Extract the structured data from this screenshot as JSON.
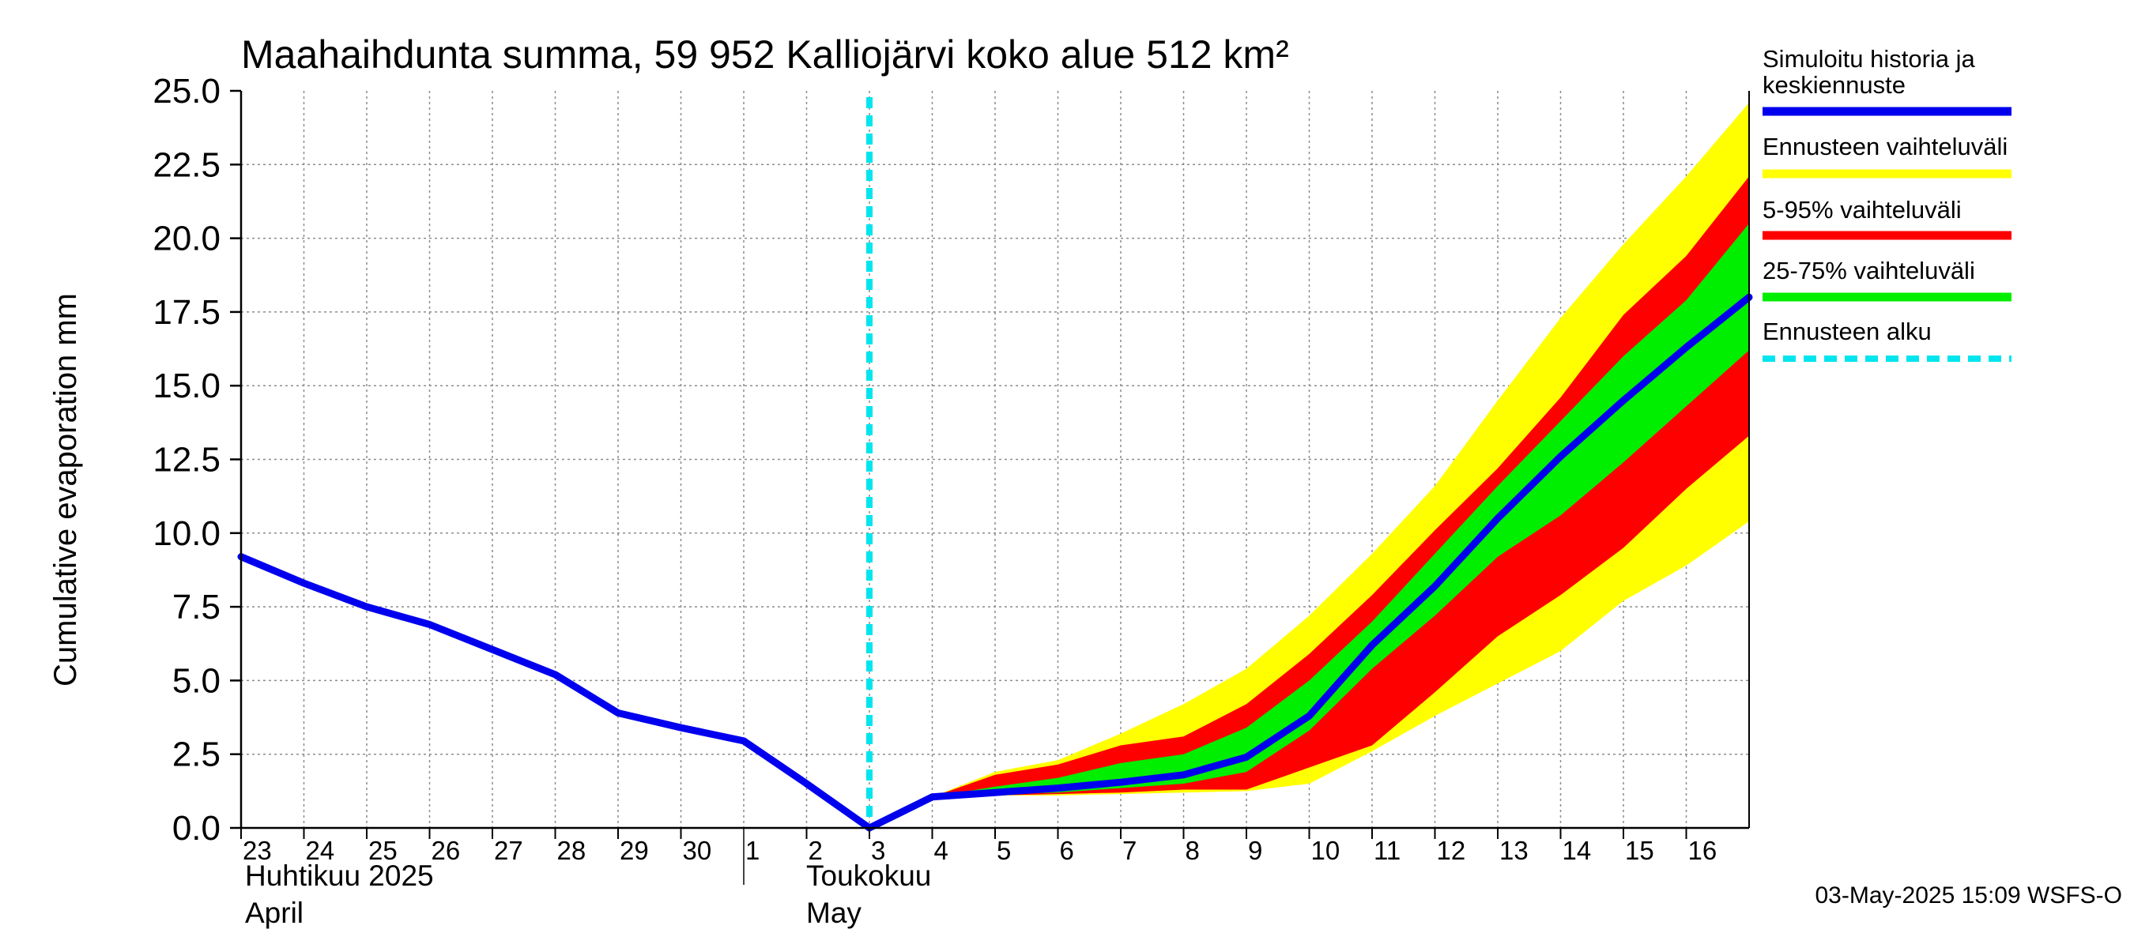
{
  "chart_data": {
    "type": "area",
    "title": "Maahaihdunta summa, 59 952 Kalliojärvi koko alue 512 km²",
    "ylabel": "Cumulative evaporation   mm",
    "ylim": [
      0,
      25
    ],
    "yticks": [
      "0.0",
      "2.5",
      "5.0",
      "7.5",
      "10.0",
      "12.5",
      "15.0",
      "17.5",
      "20.0",
      "22.5",
      "25.0"
    ],
    "x_range": [
      23,
      47
    ],
    "x_day_labels": [
      {
        "x": 23,
        "label": "23"
      },
      {
        "x": 24,
        "label": "24"
      },
      {
        "x": 25,
        "label": "25"
      },
      {
        "x": 26,
        "label": "26"
      },
      {
        "x": 27,
        "label": "27"
      },
      {
        "x": 28,
        "label": "28"
      },
      {
        "x": 29,
        "label": "29"
      },
      {
        "x": 30,
        "label": "30"
      },
      {
        "x": 31,
        "label": "1"
      },
      {
        "x": 32,
        "label": "2"
      },
      {
        "x": 33,
        "label": "3"
      },
      {
        "x": 34,
        "label": "4"
      },
      {
        "x": 35,
        "label": "5"
      },
      {
        "x": 36,
        "label": "6"
      },
      {
        "x": 37,
        "label": "7"
      },
      {
        "x": 38,
        "label": "8"
      },
      {
        "x": 39,
        "label": "9"
      },
      {
        "x": 40,
        "label": "10"
      },
      {
        "x": 41,
        "label": "11"
      },
      {
        "x": 42,
        "label": "12"
      },
      {
        "x": 43,
        "label": "13"
      },
      {
        "x": 44,
        "label": "14"
      },
      {
        "x": 45,
        "label": "15"
      },
      {
        "x": 46,
        "label": "16"
      }
    ],
    "month_labels": {
      "april_fi": "Huhtikuu  2025",
      "april_en": "April",
      "may_fi": "Toukokuu",
      "may_en": "May"
    },
    "month_boundary_x": 31,
    "forecast_start_x": 33,
    "history": {
      "name": "Simuloitu historia ja keskiennuste",
      "x": [
        23,
        24,
        25,
        26,
        27,
        28,
        29,
        30,
        31,
        32,
        33
      ],
      "y": [
        9.2,
        8.3,
        7.5,
        6.9,
        6.05,
        5.2,
        3.9,
        3.4,
        2.95,
        1.5,
        0.0
      ]
    },
    "median": {
      "x": [
        33,
        34,
        35,
        36,
        37,
        38,
        39,
        40,
        41,
        42,
        43,
        44,
        45,
        46,
        47
      ],
      "y": [
        0.0,
        1.05,
        1.2,
        1.35,
        1.55,
        1.8,
        2.4,
        3.8,
        6.2,
        8.2,
        10.5,
        12.6,
        14.5,
        16.3,
        18.0
      ]
    },
    "band_total": {
      "name": "Ennusteen vaihteluväli",
      "x": [
        33,
        34,
        35,
        36,
        37,
        38,
        39,
        40,
        41,
        42,
        43,
        44,
        45,
        46,
        47
      ],
      "lower": [
        0.0,
        1.05,
        1.1,
        1.1,
        1.15,
        1.2,
        1.25,
        1.5,
        2.6,
        3.8,
        4.9,
        6.0,
        7.7,
        8.9,
        10.4
      ],
      "upper": [
        0.0,
        1.05,
        1.9,
        2.3,
        3.2,
        4.2,
        5.4,
        7.2,
        9.3,
        11.6,
        14.5,
        17.3,
        19.8,
        22.1,
        24.6
      ]
    },
    "band_5_95": {
      "name": "5-95% vaihteluväli",
      "x": [
        33,
        34,
        35,
        36,
        37,
        38,
        39,
        40,
        41,
        42,
        43,
        44,
        45,
        46,
        47
      ],
      "lower": [
        0.0,
        1.05,
        1.1,
        1.15,
        1.2,
        1.3,
        1.3,
        2.05,
        2.8,
        4.6,
        6.5,
        7.9,
        9.5,
        11.5,
        13.3
      ],
      "upper": [
        0.0,
        1.05,
        1.8,
        2.15,
        2.8,
        3.1,
        4.2,
        5.9,
        7.9,
        10.1,
        12.2,
        14.6,
        17.4,
        19.4,
        22.1
      ]
    },
    "band_25_75": {
      "name": "25-75% vaihteluväli",
      "x": [
        33,
        34,
        35,
        36,
        37,
        38,
        39,
        40,
        41,
        42,
        43,
        44,
        45,
        46,
        47
      ],
      "lower": [
        0.0,
        1.05,
        1.15,
        1.2,
        1.35,
        1.5,
        1.9,
        3.3,
        5.4,
        7.2,
        9.2,
        10.6,
        12.4,
        14.3,
        16.2
      ],
      "upper": [
        0.0,
        1.05,
        1.4,
        1.7,
        2.2,
        2.5,
        3.4,
        5.0,
        7.0,
        9.3,
        11.6,
        13.8,
        16.0,
        17.9,
        20.5
      ]
    },
    "legend": {
      "history_label_line1": "Simuloitu historia ja",
      "history_label_line2": "keskiennuste",
      "total_label": "Ennusteen vaihteluväli",
      "p5_95_label": "5-95% vaihteluväli",
      "p25_75_label": "25-75% vaihteluväli",
      "forecast_start_label": "Ennusteen alku"
    },
    "colors": {
      "history": "#0000ee",
      "band_total": "#ffff00",
      "band_5_95": "#ff0000",
      "band_25_75": "#00ee00",
      "forecast_start": "#00e5ee",
      "grid": "#8c8c8c",
      "axis": "#000000"
    },
    "timestamp": "03-May-2025 15:09 WSFS-O"
  }
}
